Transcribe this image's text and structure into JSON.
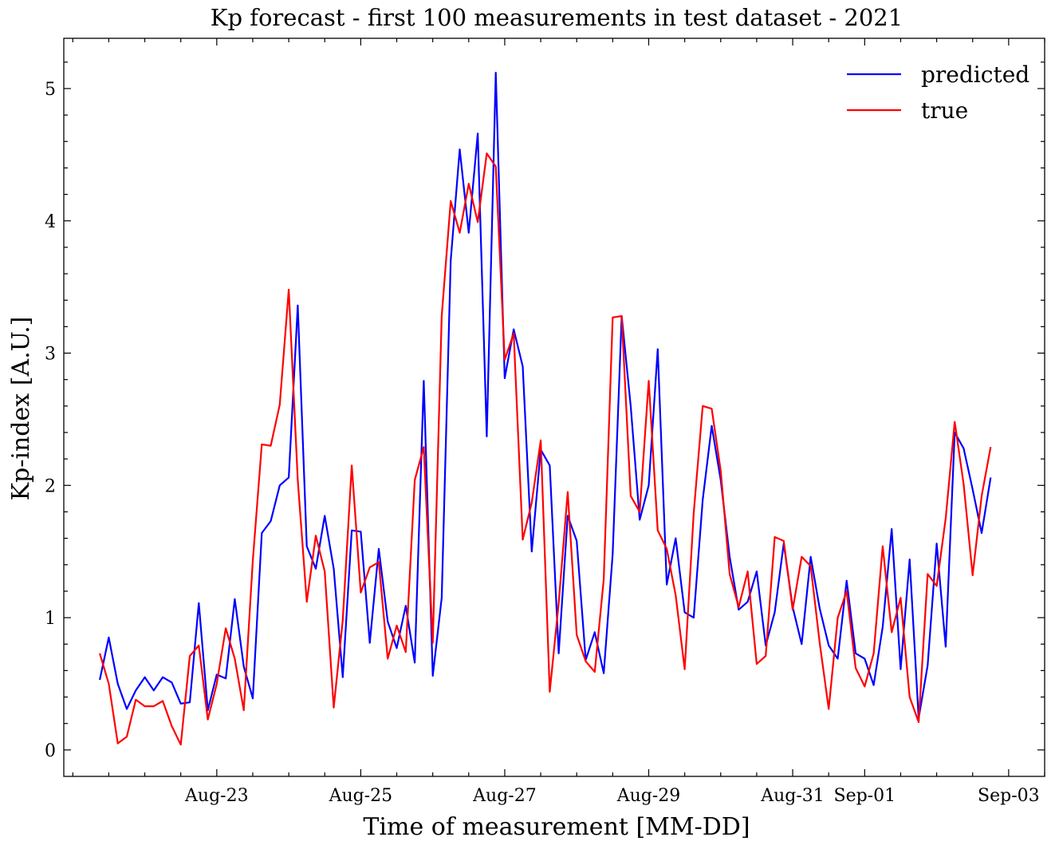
{
  "chart_data": {
    "type": "line",
    "title": "Kp forecast - first 100 measurements in test dataset - 2021",
    "xlabel": "Time of measurement [MM-DD]",
    "ylabel": "Kp-index [A.U.]",
    "x_start": "2021-08-21 09:00",
    "x_step_hours": 3,
    "xlim": [
      "2021-08-20 21:00",
      "2021-09-03 12:00"
    ],
    "ylim": [
      -0.2,
      5.38
    ],
    "yticks": [
      0,
      1,
      2,
      3,
      4,
      5
    ],
    "xticks": [
      {
        "date": "2021-08-23",
        "label": "Aug-23"
      },
      {
        "date": "2021-08-25",
        "label": "Aug-25"
      },
      {
        "date": "2021-08-27",
        "label": "Aug-27"
      },
      {
        "date": "2021-08-29",
        "label": "Aug-29"
      },
      {
        "date": "2021-08-31",
        "label": "Aug-31"
      },
      {
        "date": "2021-09-01",
        "label": "Sep-01"
      },
      {
        "date": "2021-09-03",
        "label": "Sep-03"
      }
    ],
    "legend_position": "top-right",
    "series": [
      {
        "name": "predicted",
        "color": "#0000ff",
        "values": [
          0.53,
          0.85,
          0.5,
          0.31,
          0.45,
          0.55,
          0.45,
          0.55,
          0.51,
          0.35,
          0.36,
          1.11,
          0.3,
          0.57,
          0.54,
          1.14,
          0.63,
          0.39,
          1.64,
          1.73,
          2.0,
          2.06,
          3.36,
          1.54,
          1.37,
          1.77,
          1.37,
          0.55,
          1.66,
          1.65,
          0.81,
          1.52,
          0.97,
          0.77,
          1.09,
          0.66,
          2.79,
          0.56,
          1.15,
          3.7,
          4.54,
          3.91,
          4.66,
          2.37,
          5.12,
          2.81,
          3.18,
          2.9,
          1.5,
          2.27,
          2.15,
          0.73,
          1.77,
          1.58,
          0.68,
          0.89,
          0.58,
          1.48,
          3.28,
          2.6,
          1.74,
          2.0,
          3.03,
          1.25,
          1.6,
          1.04,
          1.0,
          1.89,
          2.45,
          2.04,
          1.46,
          1.06,
          1.12,
          1.35,
          0.79,
          1.04,
          1.56,
          1.08,
          0.8,
          1.46,
          1.07,
          0.79,
          0.69,
          1.28,
          0.73,
          0.69,
          0.49,
          0.93,
          1.67,
          0.61,
          1.44,
          0.24,
          0.64,
          1.56,
          0.78,
          2.4,
          2.28,
          1.97,
          1.64,
          2.06
        ]
      },
      {
        "name": "true",
        "color": "#ff0000",
        "values": [
          0.73,
          0.5,
          0.05,
          0.1,
          0.38,
          0.33,
          0.33,
          0.37,
          0.18,
          0.04,
          0.71,
          0.79,
          0.23,
          0.5,
          0.92,
          0.69,
          0.3,
          1.43,
          2.31,
          2.3,
          2.61,
          3.48,
          2.04,
          1.12,
          1.62,
          1.35,
          0.32,
          0.98,
          2.15,
          1.19,
          1.38,
          1.42,
          0.69,
          0.94,
          0.74,
          2.04,
          2.29,
          0.81,
          3.28,
          4.15,
          3.91,
          4.28,
          3.99,
          4.51,
          4.41,
          2.95,
          3.15,
          1.59,
          1.87,
          2.34,
          0.44,
          1.11,
          1.95,
          0.87,
          0.67,
          0.59,
          1.29,
          3.27,
          3.28,
          1.92,
          1.8,
          2.79,
          1.66,
          1.52,
          1.17,
          0.61,
          1.79,
          2.6,
          2.58,
          2.11,
          1.33,
          1.08,
          1.35,
          0.65,
          0.71,
          1.61,
          1.58,
          1.06,
          1.46,
          1.39,
          0.81,
          0.31,
          1.0,
          1.2,
          0.62,
          0.48,
          0.73,
          1.54,
          0.89,
          1.15,
          0.4,
          0.21,
          1.33,
          1.24,
          1.75,
          2.48,
          2.01,
          1.32,
          1.92,
          2.29
        ]
      }
    ]
  }
}
